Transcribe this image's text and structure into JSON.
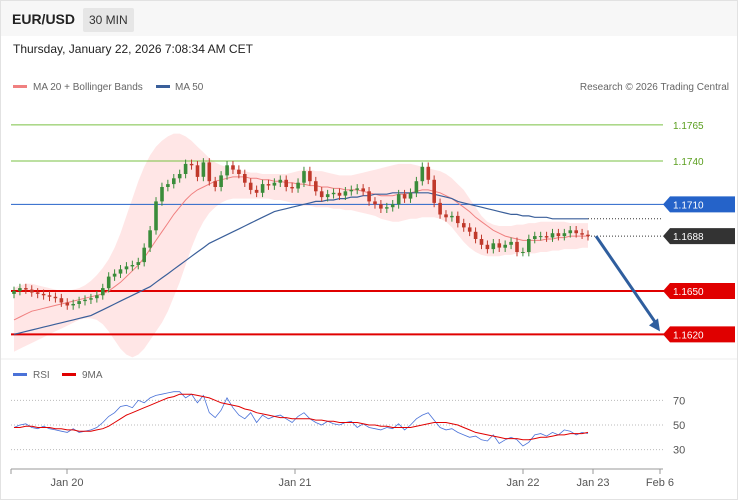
{
  "header": {
    "symbol": "EUR/USD",
    "interval": "30 MIN",
    "timestamp": "Thursday, January 22, 2026 7:08:34 AM CET"
  },
  "legend": {
    "ma20": "MA 20 + Bollinger Bands",
    "ma50": "MA 50",
    "credit": "Research © 2026 Trading Central"
  },
  "rsi_legend": {
    "rsi": "RSI",
    "ma": "9MA"
  },
  "colors": {
    "up": "#3a8c3a",
    "down": "#c0392b",
    "bollinger": "#ffd6d6",
    "ma20": "#f08080",
    "ma50": "#3a5f9a",
    "resistance": "#7ac143",
    "pivot": "#2563c9",
    "support": "#e00000",
    "rsi": "#4a72d8",
    "rsi_ma": "#e00000",
    "arrow": "#2f5e9e"
  },
  "chart_data": {
    "type": "candlestick",
    "x_ticks": [
      "Jan 20",
      "Jan 21",
      "Jan 22",
      "Jan 23",
      "Feb 6"
    ],
    "ylim": [
      1.1605,
      1.1785
    ],
    "last_price": 1.1688,
    "levels": [
      {
        "label": "1.1765",
        "value": 1.1765,
        "kind": "resistance"
      },
      {
        "label": "1.1740",
        "value": 1.174,
        "kind": "resistance"
      },
      {
        "label": "1.1710",
        "value": 1.171,
        "kind": "pivot"
      },
      {
        "label": "1.1688",
        "value": 1.1688,
        "kind": "last"
      },
      {
        "label": "1.1650",
        "value": 1.165,
        "kind": "support"
      },
      {
        "label": "1.1620",
        "value": 1.162,
        "kind": "support"
      }
    ],
    "close": [
      1.165,
      1.1652,
      1.1651,
      1.1649,
      1.1648,
      1.1647,
      1.1646,
      1.1645,
      1.1642,
      1.164,
      1.1641,
      1.1643,
      1.1644,
      1.1645,
      1.1647,
      1.1652,
      1.166,
      1.1662,
      1.1665,
      1.1667,
      1.1668,
      1.167,
      1.168,
      1.1692,
      1.1712,
      1.1722,
      1.1724,
      1.1728,
      1.1731,
      1.1738,
      1.1737,
      1.1729,
      1.1739,
      1.1726,
      1.1722,
      1.173,
      1.1737,
      1.1734,
      1.1731,
      1.1725,
      1.172,
      1.1718,
      1.1724,
      1.1723,
      1.1725,
      1.1727,
      1.1722,
      1.1721,
      1.1725,
      1.1733,
      1.1726,
      1.1719,
      1.1715,
      1.1717,
      1.1718,
      1.1716,
      1.1719,
      1.172,
      1.1721,
      1.1719,
      1.1712,
      1.171,
      1.1707,
      1.1708,
      1.171,
      1.1717,
      1.1714,
      1.1718,
      1.1726,
      1.1736,
      1.1727,
      1.1711,
      1.1703,
      1.1701,
      1.1702,
      1.1697,
      1.1694,
      1.1691,
      1.1686,
      1.1682,
      1.1679,
      1.1683,
      1.168,
      1.1682,
      1.1684,
      1.1677,
      1.1677,
      1.1686,
      1.1688,
      1.1688,
      1.1687,
      1.169,
      1.1688,
      1.169,
      1.1692,
      1.169,
      1.1689,
      1.1688
    ],
    "ma20": [
      1.163,
      1.1632,
      1.1634,
      1.1636,
      1.1637,
      1.1638,
      1.1639,
      1.164,
      1.1641,
      1.1642,
      1.1643,
      1.1644,
      1.1645,
      1.1646,
      1.1647,
      1.1648,
      1.165,
      1.1653,
      1.1656,
      1.166,
      1.1664,
      1.1668,
      1.1673,
      1.1679,
      1.1685,
      1.1691,
      1.1697,
      1.1703,
      1.1708,
      1.1713,
      1.1717,
      1.172,
      1.1722,
      1.1724,
      1.1726,
      1.1727,
      1.1728,
      1.1729,
      1.1729,
      1.1729,
      1.1728,
      1.1728,
      1.1727,
      1.1727,
      1.1726,
      1.1726,
      1.1725,
      1.1725,
      1.1724,
      1.1724,
      1.1723,
      1.1723,
      1.1722,
      1.1722,
      1.1721,
      1.1721,
      1.172,
      1.172,
      1.172,
      1.1719,
      1.1718,
      1.1717,
      1.1716,
      1.1716,
      1.1716,
      1.1717,
      1.1717,
      1.1718,
      1.1719,
      1.172,
      1.172,
      1.1719,
      1.1718,
      1.1716,
      1.1714,
      1.1711,
      1.1708,
      1.1705,
      1.1701,
      1.1698,
      1.1695,
      1.1692,
      1.169,
      1.1688,
      1.1687,
      1.1686,
      1.1685,
      1.1685,
      1.1685,
      1.1685,
      1.1686,
      1.1686,
      1.1687,
      1.1687,
      1.1688,
      1.1688,
      1.1688,
      1.1688
    ],
    "bb_upper": [
      1.1652,
      1.1654,
      1.1655,
      1.1655,
      1.1654,
      1.1653,
      1.1652,
      1.1651,
      1.165,
      1.165,
      1.1651,
      1.1652,
      1.1654,
      1.1657,
      1.1661,
      1.1666,
      1.1672,
      1.168,
      1.169,
      1.1702,
      1.1714,
      1.1726,
      1.1736,
      1.1744,
      1.175,
      1.1754,
      1.1757,
      1.1759,
      1.1759,
      1.1757,
      1.1754,
      1.175,
      1.1746,
      1.1742,
      1.1739,
      1.1737,
      1.1736,
      1.1735,
      1.1734,
      1.1733,
      1.1732,
      1.1732,
      1.1731,
      1.1731,
      1.1731,
      1.1731,
      1.1731,
      1.1732,
      1.1733,
      1.1734,
      1.1734,
      1.1733,
      1.1733,
      1.1732,
      1.1731,
      1.173,
      1.173,
      1.173,
      1.1731,
      1.1732,
      1.1733,
      1.1734,
      1.1735,
      1.1736,
      1.1737,
      1.1738,
      1.1738,
      1.1738,
      1.1737,
      1.1736,
      1.1735,
      1.1734,
      1.1733,
      1.1731,
      1.1728,
      1.1724,
      1.172,
      1.1714,
      1.1708,
      1.1702,
      1.1698,
      1.1696,
      1.1695,
      1.1695,
      1.1695,
      1.1696,
      1.1696,
      1.1697,
      1.1697,
      1.1698,
      1.1698,
      1.1698,
      1.1698,
      1.1698,
      1.1697,
      1.1697,
      1.1697,
      1.1697
    ],
    "bb_lower": [
      1.1608,
      1.161,
      1.1612,
      1.1614,
      1.1616,
      1.1618,
      1.162,
      1.1622,
      1.1624,
      1.1626,
      1.1628,
      1.163,
      1.1631,
      1.1631,
      1.163,
      1.1627,
      1.1622,
      1.1616,
      1.161,
      1.1606,
      1.1604,
      1.1606,
      1.161,
      1.1616,
      1.1622,
      1.1628,
      1.1636,
      1.1646,
      1.1656,
      1.1668,
      1.168,
      1.169,
      1.1698,
      1.1704,
      1.1708,
      1.1711,
      1.1713,
      1.1714,
      1.1714,
      1.1714,
      1.1714,
      1.1714,
      1.1714,
      1.1714,
      1.1713,
      1.1713,
      1.1712,
      1.1711,
      1.171,
      1.1709,
      1.1709,
      1.1708,
      1.1708,
      1.1708,
      1.1707,
      1.1707,
      1.1706,
      1.1706,
      1.1705,
      1.1704,
      1.1703,
      1.1702,
      1.17,
      1.1699,
      1.1698,
      1.1698,
      1.1699,
      1.17,
      1.17,
      1.1701,
      1.1701,
      1.1701,
      1.17,
      1.1698,
      1.1694,
      1.1689,
      1.1684,
      1.168,
      1.1677,
      1.1675,
      1.1674,
      1.1674,
      1.1674,
      1.1675,
      1.1675,
      1.1676,
      1.1676,
      1.1676,
      1.1676,
      1.1677,
      1.1677,
      1.1678,
      1.1678,
      1.1679,
      1.1679,
      1.1679,
      1.168,
      1.168
    ],
    "ma50": [
      1.162,
      1.1621,
      1.1622,
      1.1623,
      1.1624,
      1.1625,
      1.1626,
      1.1627,
      1.1628,
      1.1629,
      1.163,
      1.1631,
      1.1632,
      1.1633,
      1.1635,
      1.1637,
      1.1639,
      1.1641,
      1.1643,
      1.1645,
      1.1647,
      1.1649,
      1.1651,
      1.1653,
      1.1656,
      1.1659,
      1.1662,
      1.1665,
      1.1668,
      1.1671,
      1.1674,
      1.1677,
      1.168,
      1.1683,
      1.1685,
      1.1687,
      1.1689,
      1.1691,
      1.1693,
      1.1695,
      1.1697,
      1.1699,
      1.1701,
      1.1703,
      1.1705,
      1.1706,
      1.1707,
      1.1708,
      1.1709,
      1.171,
      1.1711,
      1.1712,
      1.1712,
      1.1713,
      1.1713,
      1.1714,
      1.1714,
      1.1715,
      1.1715,
      1.1716,
      1.1716,
      1.1717,
      1.1717,
      1.1717,
      1.1718,
      1.1718,
      1.1718,
      1.1718,
      1.1718,
      1.1718,
      1.1718,
      1.1717,
      1.1716,
      1.1715,
      1.1714,
      1.1712,
      1.1711,
      1.171,
      1.1709,
      1.1708,
      1.1707,
      1.1706,
      1.1705,
      1.1704,
      1.1703,
      1.1703,
      1.1702,
      1.1702,
      1.1701,
      1.1701,
      1.1701,
      1.17,
      1.17,
      1.17,
      1.17,
      1.17,
      1.17,
      1.17
    ],
    "projection": {
      "from": 1.1688,
      "to": 1.162
    },
    "rsi": {
      "ylim": [
        20,
        80
      ],
      "levels": [
        70,
        50,
        30
      ],
      "rsi": [
        48,
        50,
        51,
        48,
        47,
        49,
        47,
        46,
        45,
        44,
        47,
        44,
        45,
        46,
        48,
        52,
        57,
        60,
        65,
        66,
        64,
        70,
        68,
        72,
        74,
        75,
        76,
        77,
        77,
        72,
        75,
        68,
        74,
        60,
        56,
        62,
        72,
        64,
        58,
        55,
        60,
        52,
        58,
        55,
        57,
        58,
        55,
        52,
        57,
        60,
        55,
        52,
        50,
        53,
        51,
        50,
        52,
        53,
        48,
        51,
        48,
        47,
        46,
        48,
        47,
        51,
        46,
        50,
        55,
        58,
        60,
        54,
        48,
        46,
        47,
        44,
        42,
        40,
        41,
        38,
        37,
        42,
        35,
        38,
        40,
        38,
        33,
        36,
        42,
        43,
        41,
        44,
        42,
        46,
        45,
        42,
        44,
        43
      ],
      "ma": [
        48,
        48,
        49,
        49,
        48,
        48,
        48,
        47,
        47,
        46,
        46,
        45,
        45,
        45,
        46,
        47,
        49,
        52,
        55,
        58,
        60,
        62,
        64,
        66,
        68,
        70,
        72,
        73,
        75,
        75,
        75,
        74,
        73,
        72,
        70,
        68,
        67,
        66,
        65,
        63,
        62,
        60,
        59,
        58,
        57,
        56,
        56,
        55,
        55,
        55,
        55,
        54,
        54,
        53,
        53,
        52,
        52,
        52,
        52,
        51,
        50,
        50,
        49,
        49,
        48,
        48,
        48,
        48,
        49,
        50,
        51,
        52,
        52,
        52,
        51,
        50,
        48,
        46,
        44,
        43,
        42,
        41,
        40,
        39,
        39,
        39,
        38,
        38,
        39,
        40,
        40,
        41,
        42,
        42,
        43,
        43,
        43,
        44
      ]
    }
  }
}
